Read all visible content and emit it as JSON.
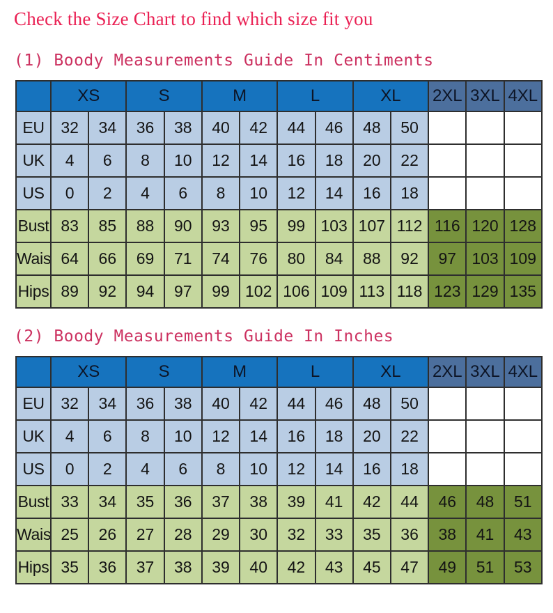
{
  "page": {
    "title": "Check the Size Chart to find which size fit you"
  },
  "colors": {
    "title_pink": "#ea2154",
    "heading_pink": "#cc3160",
    "header_blue": "#1673be",
    "header_slate_blue": "#4c6f9d",
    "row_light_blue": "#b9cde4",
    "row_light_green": "#c5d79e",
    "cell_dark_green": "#77923d",
    "grid_border": "#2e2e2e"
  },
  "size_groups": [
    {
      "label": "XS",
      "span": 2
    },
    {
      "label": "S",
      "span": 2
    },
    {
      "label": "M",
      "span": 2
    },
    {
      "label": "L",
      "span": 2
    },
    {
      "label": "XL",
      "span": 2
    },
    {
      "label": "2XL",
      "span": 1
    },
    {
      "label": "3XL",
      "span": 1
    },
    {
      "label": "4XL",
      "span": 1
    }
  ],
  "sections": [
    {
      "heading": "(1) Boody Measurements Guide In Centiments",
      "rows": [
        {
          "label": "EU",
          "kind": "blue",
          "values": [
            "32",
            "34",
            "36",
            "38",
            "40",
            "42",
            "44",
            "46",
            "48",
            "50",
            "",
            "",
            ""
          ]
        },
        {
          "label": "UK",
          "kind": "blue",
          "values": [
            "4",
            "6",
            "8",
            "10",
            "12",
            "14",
            "16",
            "18",
            "20",
            "22",
            "",
            "",
            ""
          ]
        },
        {
          "label": "US",
          "kind": "blue",
          "values": [
            "0",
            "2",
            "4",
            "6",
            "8",
            "10",
            "12",
            "14",
            "16",
            "18",
            "",
            "",
            ""
          ]
        },
        {
          "label": "Bust",
          "kind": "green",
          "values": [
            "83",
            "85",
            "88",
            "90",
            "93",
            "95",
            "99",
            "103",
            "107",
            "112",
            "116",
            "120",
            "128"
          ]
        },
        {
          "label": "Waist",
          "kind": "green",
          "values": [
            "64",
            "66",
            "69",
            "71",
            "74",
            "76",
            "80",
            "84",
            "88",
            "92",
            "97",
            "103",
            "109"
          ]
        },
        {
          "label": "Hips",
          "kind": "green",
          "values": [
            "89",
            "92",
            "94",
            "97",
            "99",
            "102",
            "106",
            "109",
            "113",
            "118",
            "123",
            "129",
            "135"
          ]
        }
      ]
    },
    {
      "heading": "(2) Boody Measurements Guide In Inches",
      "rows": [
        {
          "label": "EU",
          "kind": "blue",
          "values": [
            "32",
            "34",
            "36",
            "38",
            "40",
            "42",
            "44",
            "46",
            "48",
            "50",
            "",
            "",
            ""
          ]
        },
        {
          "label": "UK",
          "kind": "blue",
          "values": [
            "4",
            "6",
            "8",
            "10",
            "12",
            "14",
            "16",
            "18",
            "20",
            "22",
            "",
            "",
            ""
          ]
        },
        {
          "label": "US",
          "kind": "blue",
          "values": [
            "0",
            "2",
            "4",
            "6",
            "8",
            "10",
            "12",
            "14",
            "16",
            "18",
            "",
            "",
            ""
          ]
        },
        {
          "label": "Bust",
          "kind": "green",
          "values": [
            "33",
            "34",
            "35",
            "36",
            "37",
            "38",
            "39",
            "41",
            "42",
            "44",
            "46",
            "48",
            "51"
          ]
        },
        {
          "label": "Waist",
          "kind": "green",
          "values": [
            "25",
            "26",
            "27",
            "28",
            "29",
            "30",
            "32",
            "33",
            "35",
            "36",
            "38",
            "41",
            "43"
          ]
        },
        {
          "label": "Hips",
          "kind": "green",
          "values": [
            "35",
            "36",
            "37",
            "38",
            "39",
            "40",
            "42",
            "43",
            "45",
            "47",
            "49",
            "51",
            "53"
          ]
        }
      ]
    }
  ]
}
